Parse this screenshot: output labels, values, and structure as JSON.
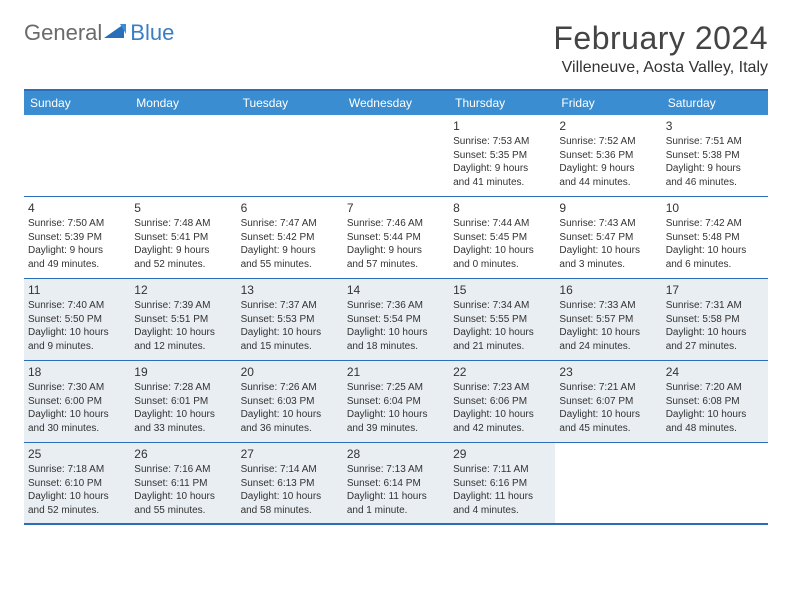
{
  "logo": {
    "text1": "General",
    "text2": "Blue"
  },
  "title": "February 2024",
  "location": "Villeneuve, Aosta Valley, Italy",
  "weekdays": [
    "Sunday",
    "Monday",
    "Tuesday",
    "Wednesday",
    "Thursday",
    "Friday",
    "Saturday"
  ],
  "colors": {
    "header_bar": "#3a8dd0",
    "border": "#2a6db8",
    "shaded": "#e9eef2",
    "logo_blue": "#3a7fc4",
    "text": "#333333"
  },
  "weeks": [
    [
      {
        "blank": true
      },
      {
        "blank": true
      },
      {
        "blank": true
      },
      {
        "blank": true
      },
      {
        "num": "1",
        "sunrise": "Sunrise: 7:53 AM",
        "sunset": "Sunset: 5:35 PM",
        "day1": "Daylight: 9 hours",
        "day2": "and 41 minutes."
      },
      {
        "num": "2",
        "sunrise": "Sunrise: 7:52 AM",
        "sunset": "Sunset: 5:36 PM",
        "day1": "Daylight: 9 hours",
        "day2": "and 44 minutes."
      },
      {
        "num": "3",
        "sunrise": "Sunrise: 7:51 AM",
        "sunset": "Sunset: 5:38 PM",
        "day1": "Daylight: 9 hours",
        "day2": "and 46 minutes."
      }
    ],
    [
      {
        "num": "4",
        "sunrise": "Sunrise: 7:50 AM",
        "sunset": "Sunset: 5:39 PM",
        "day1": "Daylight: 9 hours",
        "day2": "and 49 minutes."
      },
      {
        "num": "5",
        "sunrise": "Sunrise: 7:48 AM",
        "sunset": "Sunset: 5:41 PM",
        "day1": "Daylight: 9 hours",
        "day2": "and 52 minutes."
      },
      {
        "num": "6",
        "sunrise": "Sunrise: 7:47 AM",
        "sunset": "Sunset: 5:42 PM",
        "day1": "Daylight: 9 hours",
        "day2": "and 55 minutes."
      },
      {
        "num": "7",
        "sunrise": "Sunrise: 7:46 AM",
        "sunset": "Sunset: 5:44 PM",
        "day1": "Daylight: 9 hours",
        "day2": "and 57 minutes."
      },
      {
        "num": "8",
        "sunrise": "Sunrise: 7:44 AM",
        "sunset": "Sunset: 5:45 PM",
        "day1": "Daylight: 10 hours",
        "day2": "and 0 minutes."
      },
      {
        "num": "9",
        "sunrise": "Sunrise: 7:43 AM",
        "sunset": "Sunset: 5:47 PM",
        "day1": "Daylight: 10 hours",
        "day2": "and 3 minutes."
      },
      {
        "num": "10",
        "sunrise": "Sunrise: 7:42 AM",
        "sunset": "Sunset: 5:48 PM",
        "day1": "Daylight: 10 hours",
        "day2": "and 6 minutes."
      }
    ],
    [
      {
        "num": "11",
        "shaded": true,
        "sunrise": "Sunrise: 7:40 AM",
        "sunset": "Sunset: 5:50 PM",
        "day1": "Daylight: 10 hours",
        "day2": "and 9 minutes."
      },
      {
        "num": "12",
        "shaded": true,
        "sunrise": "Sunrise: 7:39 AM",
        "sunset": "Sunset: 5:51 PM",
        "day1": "Daylight: 10 hours",
        "day2": "and 12 minutes."
      },
      {
        "num": "13",
        "shaded": true,
        "sunrise": "Sunrise: 7:37 AM",
        "sunset": "Sunset: 5:53 PM",
        "day1": "Daylight: 10 hours",
        "day2": "and 15 minutes."
      },
      {
        "num": "14",
        "shaded": true,
        "sunrise": "Sunrise: 7:36 AM",
        "sunset": "Sunset: 5:54 PM",
        "day1": "Daylight: 10 hours",
        "day2": "and 18 minutes."
      },
      {
        "num": "15",
        "shaded": true,
        "sunrise": "Sunrise: 7:34 AM",
        "sunset": "Sunset: 5:55 PM",
        "day1": "Daylight: 10 hours",
        "day2": "and 21 minutes."
      },
      {
        "num": "16",
        "shaded": true,
        "sunrise": "Sunrise: 7:33 AM",
        "sunset": "Sunset: 5:57 PM",
        "day1": "Daylight: 10 hours",
        "day2": "and 24 minutes."
      },
      {
        "num": "17",
        "shaded": true,
        "sunrise": "Sunrise: 7:31 AM",
        "sunset": "Sunset: 5:58 PM",
        "day1": "Daylight: 10 hours",
        "day2": "and 27 minutes."
      }
    ],
    [
      {
        "num": "18",
        "shaded": true,
        "sunrise": "Sunrise: 7:30 AM",
        "sunset": "Sunset: 6:00 PM",
        "day1": "Daylight: 10 hours",
        "day2": "and 30 minutes."
      },
      {
        "num": "19",
        "shaded": true,
        "sunrise": "Sunrise: 7:28 AM",
        "sunset": "Sunset: 6:01 PM",
        "day1": "Daylight: 10 hours",
        "day2": "and 33 minutes."
      },
      {
        "num": "20",
        "shaded": true,
        "sunrise": "Sunrise: 7:26 AM",
        "sunset": "Sunset: 6:03 PM",
        "day1": "Daylight: 10 hours",
        "day2": "and 36 minutes."
      },
      {
        "num": "21",
        "shaded": true,
        "sunrise": "Sunrise: 7:25 AM",
        "sunset": "Sunset: 6:04 PM",
        "day1": "Daylight: 10 hours",
        "day2": "and 39 minutes."
      },
      {
        "num": "22",
        "shaded": true,
        "sunrise": "Sunrise: 7:23 AM",
        "sunset": "Sunset: 6:06 PM",
        "day1": "Daylight: 10 hours",
        "day2": "and 42 minutes."
      },
      {
        "num": "23",
        "shaded": true,
        "sunrise": "Sunrise: 7:21 AM",
        "sunset": "Sunset: 6:07 PM",
        "day1": "Daylight: 10 hours",
        "day2": "and 45 minutes."
      },
      {
        "num": "24",
        "shaded": true,
        "sunrise": "Sunrise: 7:20 AM",
        "sunset": "Sunset: 6:08 PM",
        "day1": "Daylight: 10 hours",
        "day2": "and 48 minutes."
      }
    ],
    [
      {
        "num": "25",
        "shaded": true,
        "sunrise": "Sunrise: 7:18 AM",
        "sunset": "Sunset: 6:10 PM",
        "day1": "Daylight: 10 hours",
        "day2": "and 52 minutes."
      },
      {
        "num": "26",
        "shaded": true,
        "sunrise": "Sunrise: 7:16 AM",
        "sunset": "Sunset: 6:11 PM",
        "day1": "Daylight: 10 hours",
        "day2": "and 55 minutes."
      },
      {
        "num": "27",
        "shaded": true,
        "sunrise": "Sunrise: 7:14 AM",
        "sunset": "Sunset: 6:13 PM",
        "day1": "Daylight: 10 hours",
        "day2": "and 58 minutes."
      },
      {
        "num": "28",
        "shaded": true,
        "sunrise": "Sunrise: 7:13 AM",
        "sunset": "Sunset: 6:14 PM",
        "day1": "Daylight: 11 hours",
        "day2": "and 1 minute."
      },
      {
        "num": "29",
        "shaded": true,
        "sunrise": "Sunrise: 7:11 AM",
        "sunset": "Sunset: 6:16 PM",
        "day1": "Daylight: 11 hours",
        "day2": "and 4 minutes."
      },
      {
        "blank": true
      },
      {
        "blank": true
      }
    ]
  ]
}
